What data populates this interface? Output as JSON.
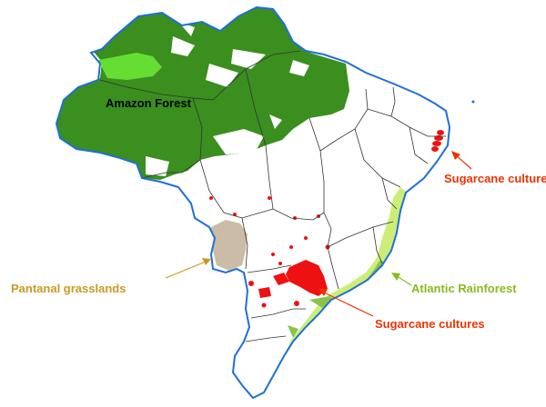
{
  "labels": {
    "amazon": "Amazon Forest",
    "sugarcane_ne": "Sugarcane cultures",
    "pantanal": "Pantanal grasslands",
    "atlantic": "Atlantic Rainforest",
    "sugarcane_se": "Sugarcane cultures"
  },
  "colors": {
    "amazon": "#3a8f1f",
    "amazon_light": "#66dd33",
    "sugarcane": "#ee1111",
    "pantanal": "#cbbca6",
    "atlantic": "#ccee77",
    "atlantic_dark": "#8bc34a",
    "coastline": "#1f6fd6",
    "state_border": "#333333",
    "label_sugarcane": "#ee3300",
    "label_pantanal": "#cc9922",
    "label_atlantic": "#88bb22",
    "label_amazon": "#000000"
  }
}
